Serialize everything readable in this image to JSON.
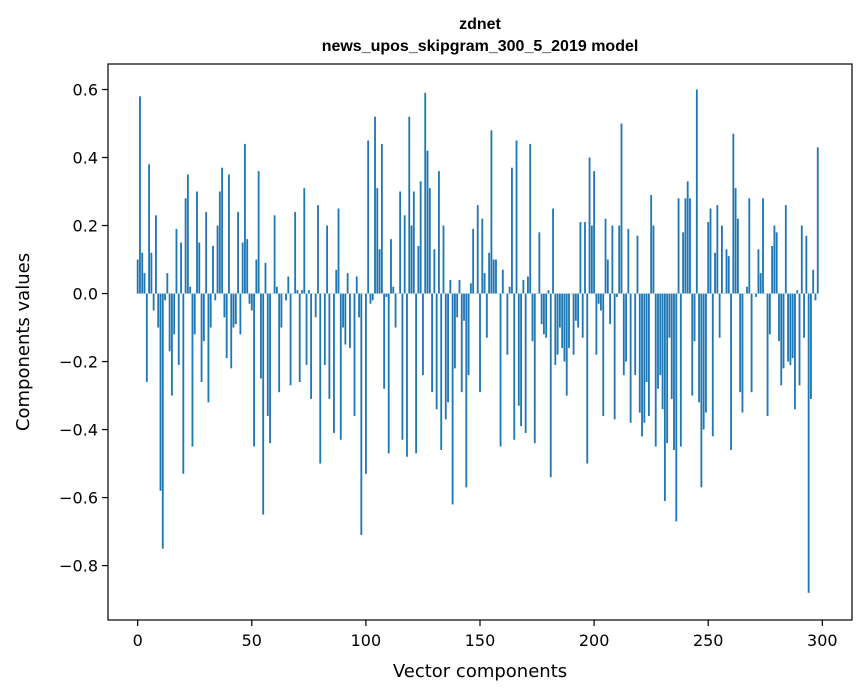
{
  "chart_data": {
    "type": "bar",
    "title_line1": "zdnet",
    "title_line2": "news_upos_skipgram_300_5_2019 model",
    "xlabel": "Vector components",
    "ylabel": "Components values",
    "xlim": [
      -13,
      313
    ],
    "ylim": [
      -0.96,
      0.675
    ],
    "xticks": [
      0,
      50,
      100,
      150,
      200,
      250,
      300
    ],
    "xtick_labels": [
      "0",
      "50",
      "100",
      "150",
      "200",
      "250",
      "300"
    ],
    "yticks": [
      -0.8,
      -0.6,
      -0.4,
      -0.2,
      0.0,
      0.2,
      0.4,
      0.6
    ],
    "ytick_labels": [
      "−0.8",
      "−0.6",
      "−0.4",
      "−0.2",
      "0.0",
      "0.2",
      "0.4",
      "0.6"
    ],
    "bar_color": "#1f77b4",
    "grid": false,
    "values": [
      0.1,
      0.58,
      0.12,
      0.06,
      -0.26,
      0.38,
      0.12,
      -0.05,
      0.23,
      -0.1,
      -0.58,
      -0.75,
      -0.02,
      0.06,
      -0.17,
      -0.3,
      -0.12,
      0.19,
      -0.21,
      0.15,
      -0.53,
      0.28,
      0.35,
      0.02,
      -0.45,
      -0.12,
      0.3,
      0.15,
      -0.26,
      -0.14,
      0.24,
      -0.32,
      -0.1,
      0.14,
      -0.02,
      0.2,
      0.3,
      0.37,
      -0.07,
      -0.19,
      0.35,
      -0.22,
      -0.1,
      -0.09,
      0.24,
      -0.12,
      0.15,
      0.44,
      0.16,
      -0.03,
      -0.05,
      -0.45,
      0.1,
      0.36,
      -0.25,
      -0.65,
      0.09,
      -0.36,
      -0.44,
      0.0,
      0.23,
      0.02,
      -0.29,
      -0.1,
      0.0,
      -0.02,
      0.05,
      -0.27,
      0.0,
      0.24,
      0.01,
      -0.26,
      0.01,
      0.31,
      -0.21,
      0.01,
      -0.31,
      0.0,
      -0.07,
      0.26,
      -0.5,
      0.0,
      -0.21,
      0.2,
      -0.31,
      0.0,
      -0.41,
      0.07,
      0.25,
      -0.43,
      -0.1,
      -0.15,
      0.06,
      -0.16,
      0.0,
      -0.36,
      0.05,
      -0.07,
      -0.71,
      0.0,
      -0.53,
      0.45,
      -0.03,
      -0.02,
      0.52,
      0.31,
      0.13,
      0.44,
      -0.28,
      -0.01,
      -0.47,
      0.16,
      0.02,
      -0.1,
      0.0,
      0.3,
      -0.43,
      0.23,
      -0.48,
      0.52,
      0.2,
      0.3,
      -0.47,
      0.14,
      0.33,
      -0.24,
      0.59,
      0.42,
      0.31,
      -0.29,
      0.13,
      -0.34,
      0.36,
      -0.46,
      0.2,
      -0.37,
      -0.32,
      0.04,
      -0.62,
      -0.22,
      -0.07,
      0.04,
      -0.29,
      -0.08,
      -0.57,
      -0.24,
      0.03,
      0.19,
      0.0,
      0.26,
      -0.29,
      0.22,
      0.06,
      -0.13,
      0.12,
      0.48,
      0.1,
      0.1,
      0.0,
      -0.45,
      0.07,
      0.0,
      -0.18,
      0.02,
      0.37,
      -0.43,
      0.45,
      -0.33,
      -0.39,
      0.04,
      -0.41,
      0.05,
      0.44,
      -0.14,
      -0.44,
      0.0,
      0.18,
      -0.09,
      -0.12,
      -0.13,
      0.01,
      -0.54,
      0.25,
      -0.21,
      -0.18,
      -0.1,
      -0.16,
      -0.2,
      -0.3,
      -0.16,
      0.0,
      -0.18,
      -0.08,
      -0.1,
      0.21,
      -0.13,
      0.21,
      -0.5,
      0.4,
      0.2,
      0.36,
      -0.18,
      -0.03,
      -0.05,
      -0.36,
      0.22,
      0.1,
      -0.09,
      0.2,
      -0.37,
      -0.01,
      0.2,
      0.5,
      -0.24,
      -0.2,
      0.19,
      -0.38,
      0.0,
      -0.24,
      0.17,
      -0.35,
      -0.42,
      -0.38,
      -0.26,
      -0.36,
      0.29,
      0.2,
      -0.45,
      -0.28,
      -0.24,
      -0.34,
      -0.61,
      -0.44,
      -0.13,
      -0.31,
      -0.46,
      -0.67,
      0.28,
      -0.45,
      0.18,
      0.28,
      0.33,
      0.28,
      -0.3,
      -0.14,
      0.6,
      -0.32,
      -0.57,
      -0.4,
      -0.35,
      0.21,
      0.25,
      -0.42,
      0.12,
      0.26,
      -0.13,
      0.2,
      0.0,
      0.13,
      0.11,
      -0.46,
      0.47,
      0.31,
      0.22,
      -0.29,
      -0.35,
      0.0,
      0.02,
      0.28,
      -0.29,
      0.0,
      -0.01,
      0.13,
      0.06,
      0.28,
      0.0,
      -0.36,
      -0.12,
      0.14,
      0.2,
      0.18,
      -0.14,
      -0.27,
      -0.22,
      0.26,
      -0.2,
      -0.21,
      -0.19,
      -0.34,
      0.01,
      -0.27,
      0.2,
      -0.13,
      0.17,
      -0.88,
      -0.31,
      0.07,
      -0.02,
      0.43
    ]
  }
}
